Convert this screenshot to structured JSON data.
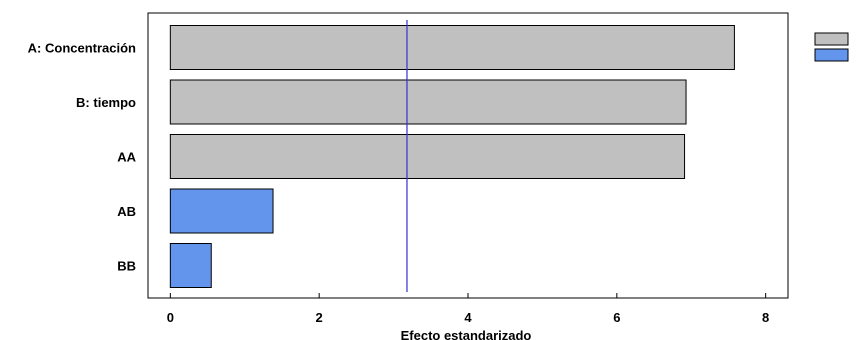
{
  "chart_data": {
    "type": "bar",
    "orientation": "horizontal",
    "categories": [
      "A: Concentración",
      "B: tiempo",
      "AA",
      "AB",
      "BB"
    ],
    "values": [
      7.58,
      6.93,
      6.91,
      1.38,
      0.55
    ],
    "bar_colors": [
      "#c0c0c0",
      "#c0c0c0",
      "#c0c0c0",
      "#6495ed",
      "#6495ed"
    ],
    "xlabel": "Efecto estandarizado",
    "xlim": [
      -0.3,
      8.3
    ],
    "xticks": [
      0,
      2,
      4,
      6,
      8
    ],
    "reference_line": 3.18,
    "reference_line_color": "#3333cc",
    "legend": {
      "placement": "top-right",
      "entries": [
        {
          "color": "#c0c0c0",
          "label": ""
        },
        {
          "color": "#6495ed",
          "label": ""
        }
      ]
    },
    "grid": false
  }
}
